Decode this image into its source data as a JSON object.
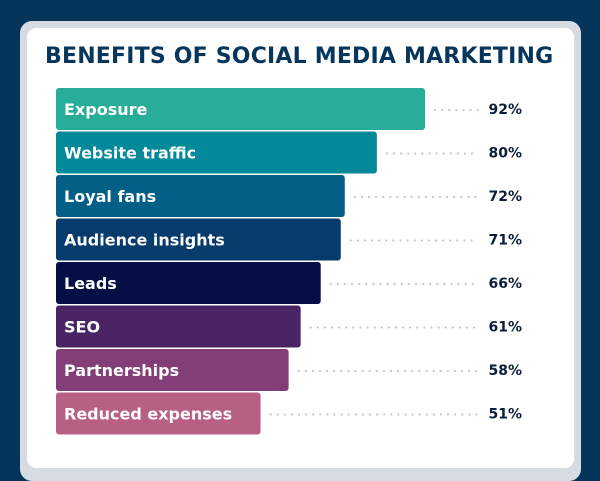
{
  "chart_data": {
    "type": "bar",
    "orientation": "horizontal",
    "title": "BENEFITS OF SOCIAL MEDIA MARKETING",
    "categories": [
      "Exposure",
      "Website traffic",
      "Loyal fans",
      "Audience insights",
      "Leads",
      "SEO",
      "Partnerships",
      "Reduced expenses"
    ],
    "values": [
      92,
      80,
      72,
      71,
      66,
      61,
      58,
      51
    ],
    "value_labels": [
      "92%",
      "80%",
      "72%",
      "71%",
      "66%",
      "61%",
      "58%",
      "51%"
    ],
    "colors": [
      "#28ae98",
      "#03899a",
      "#045f86",
      "#063b6c",
      "#050f45",
      "#4a2565",
      "#843e77",
      "#b85f84"
    ],
    "xlim": [
      0,
      100
    ],
    "grid": false,
    "legend": "none"
  }
}
